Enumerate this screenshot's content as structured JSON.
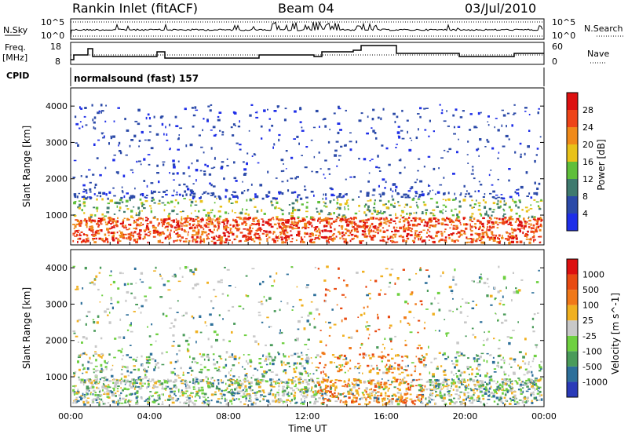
{
  "header": {
    "station": "Rankin Inlet (fitACF)",
    "beam": "Beam 04",
    "date": "03/Jul/2010"
  },
  "status_panels": {
    "nsky_label": "N.Sky",
    "nsky_ticks": [
      "10^5",
      "10^0"
    ],
    "nsearch_label": "N.Search",
    "freq_label": "Freq.",
    "freq_unit": "[MHz]",
    "freq_ticks": [
      "18",
      "8"
    ],
    "nave_label": "Nave",
    "nave_ticks": [
      "60",
      "0"
    ],
    "cpid_label": "CPID",
    "cpid_value": "normalsound (fast) 157"
  },
  "chart_data": [
    {
      "type": "heatmap",
      "name": "power-panel",
      "xlabel": "",
      "ylabel": "Slant Range [km]",
      "xlim": [
        0,
        24
      ],
      "ylim": [
        180,
        4500
      ],
      "y_ticks": [
        "1000",
        "2000",
        "3000",
        "4000"
      ],
      "colorbar_label": "Power [dB]",
      "colorbar_ticks": [
        "4",
        "8",
        "12",
        "16",
        "20",
        "24",
        "28"
      ],
      "colorbar_colors": [
        "#1e2ee8",
        "#2b4aa8",
        "#3f7a6e",
        "#5fbf3a",
        "#e8c21a",
        "#f08a1a",
        "#ee4418",
        "#dd1010"
      ]
    },
    {
      "type": "heatmap",
      "name": "velocity-panel",
      "xlabel": "Time UT",
      "ylabel": "Slant Range [km]",
      "xlim": [
        0,
        24
      ],
      "ylim": [
        180,
        4500
      ],
      "x_ticks": [
        "00:00",
        "04:00",
        "08:00",
        "12:00",
        "16:00",
        "20:00",
        "00:00"
      ],
      "y_ticks": [
        "1000",
        "2000",
        "3000",
        "4000"
      ],
      "colorbar_label": "Velocity [m s^-1]",
      "colorbar_ticks": [
        "1000",
        "500",
        "100",
        "25",
        "-25",
        "-100",
        "-500",
        "-1000"
      ],
      "colorbar_colors": [
        "#2a3ab8",
        "#2d6f9a",
        "#4a9b5a",
        "#6ed040",
        "#c8c8c8",
        "#f0b020",
        "#f07818",
        "#e84a12",
        "#dd1010"
      ]
    }
  ]
}
